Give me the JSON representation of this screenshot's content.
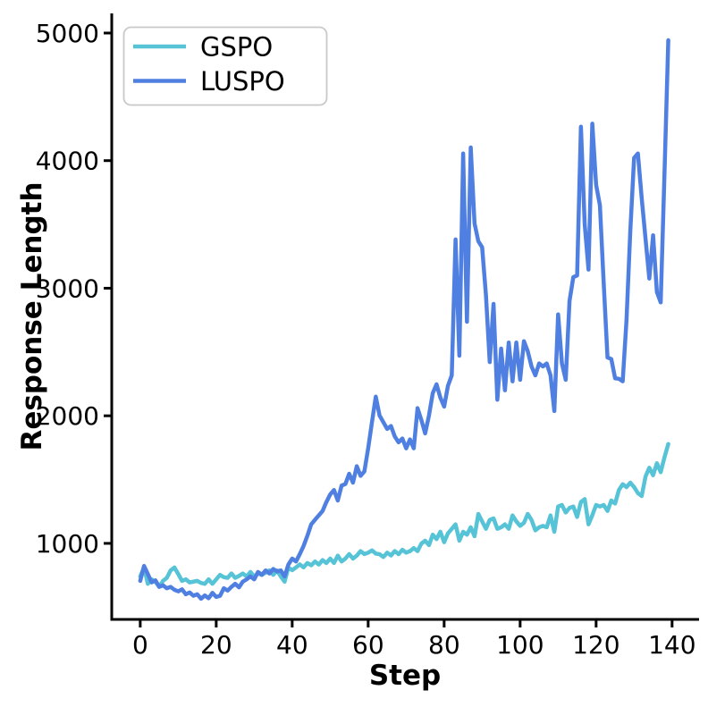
{
  "chart_data": {
    "type": "line",
    "title": "",
    "xlabel": "Step",
    "ylabel": "Response Length",
    "x_description": "one data point per training step, step index 0..139",
    "xticks": [
      0,
      20,
      40,
      60,
      80,
      100,
      120,
      140
    ],
    "yticks": [
      1000,
      2000,
      3000,
      4000,
      5000
    ],
    "xlim": [
      -7.5,
      147.1
    ],
    "ylim": [
      404,
      5154
    ],
    "grid": false,
    "legend_position": "upper-left",
    "spine_color": "#000000",
    "series": [
      {
        "name": "GSPO",
        "color": "#56c3d6",
        "values": [
          741,
          811,
          683,
          718,
          700,
          659,
          706,
          730,
          788,
          811,
          760,
          706,
          718,
          694,
          700,
          706,
          690,
          683,
          718,
          683,
          718,
          753,
          735,
          730,
          764,
          730,
          745,
          764,
          741,
          776,
          741,
          764,
          753,
          770,
          788,
          753,
          788,
          741,
          700,
          810,
          790,
          812,
          835,
          812,
          846,
          828,
          858,
          834,
          869,
          846,
          881,
          846,
          904,
          858,
          881,
          916,
          881,
          904,
          939,
          916,
          927,
          945,
          920,
          915,
          893,
          927,
          905,
          940,
          915,
          950,
          927,
          939,
          963,
          939,
          998,
          1021,
          986,
          1068,
          1033,
          1091,
          1009,
          1079,
          1114,
          1149,
          1021,
          1091,
          1068,
          1126,
          1056,
          1231,
          1172,
          1114,
          1184,
          1196,
          1114,
          1126,
          1149,
          1114,
          1219,
          1172,
          1137,
          1161,
          1231,
          1184,
          1102,
          1126,
          1137,
          1126,
          1219,
          1091,
          1289,
          1301,
          1242,
          1278,
          1289,
          1207,
          1324,
          1347,
          1149,
          1220,
          1301,
          1289,
          1301,
          1254,
          1336,
          1312,
          1418,
          1464,
          1441,
          1476,
          1441,
          1394,
          1371,
          1523,
          1593,
          1534,
          1628,
          1558,
          1675,
          1779
        ]
      },
      {
        "name": "LUSPO",
        "color": "#4f80e1",
        "values": [
          706,
          823,
          760,
          694,
          710,
          659,
          671,
          648,
          659,
          636,
          624,
          640,
          601,
          615,
          589,
          601,
          566,
          592,
          570,
          612,
          580,
          589,
          648,
          630,
          659,
          683,
          655,
          700,
          718,
          741,
          718,
          776,
          753,
          788,
          764,
          799,
          780,
          788,
          741,
          834,
          881,
          858,
          916,
          980,
          1060,
          1149,
          1185,
          1219,
          1254,
          1324,
          1383,
          1418,
          1336,
          1453,
          1465,
          1546,
          1476,
          1605,
          1529,
          1564,
          1745,
          1950,
          2150,
          2002,
          1950,
          1897,
          1920,
          1838,
          1792,
          1822,
          1745,
          1815,
          1745,
          2060,
          1967,
          1862,
          2002,
          2177,
          2247,
          2142,
          2072,
          2235,
          2317,
          3382,
          2471,
          4056,
          2737,
          4103,
          3508,
          3368,
          3321,
          2947,
          2421,
          2877,
          2126,
          2527,
          2200,
          2574,
          2270,
          2574,
          2282,
          2585,
          2506,
          2387,
          2317,
          2410,
          2387,
          2410,
          2317,
          2037,
          2795,
          2410,
          2282,
          2900,
          3087,
          3100,
          4266,
          3500,
          3146,
          4290,
          3811,
          3650,
          3040,
          2457,
          2445,
          2294,
          2290,
          2270,
          2749,
          3449,
          4021,
          4056,
          3706,
          3391,
          3076,
          3415,
          2970,
          2889,
          3900,
          4944
        ]
      }
    ]
  },
  "legend": {
    "border_color": "#c9c9c9",
    "background": "#ffffff"
  }
}
